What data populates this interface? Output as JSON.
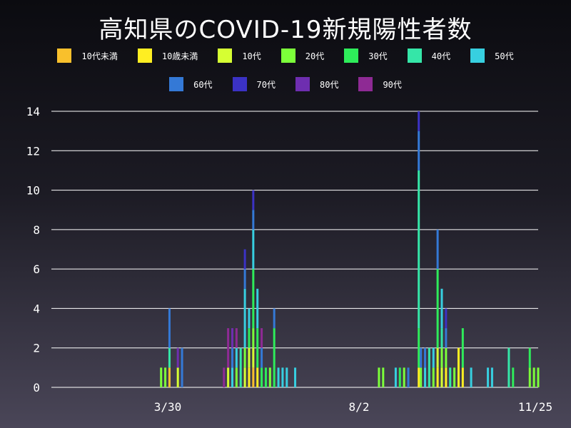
{
  "chart_data": {
    "type": "bar",
    "stacked": true,
    "title": "高知県のCOVID-19新規陽性者数",
    "x_tick_labels": [
      "3/30",
      "8/2",
      "11/25"
    ],
    "ylim": [
      0,
      14
    ],
    "yticks": [
      0,
      2,
      4,
      6,
      8,
      10,
      12,
      14
    ],
    "grid": true,
    "series": [
      {
        "name": "10代未満",
        "color": "#f9c02c"
      },
      {
        "name": "10歳未満",
        "color": "#ffee22"
      },
      {
        "name": "10代",
        "color": "#d6ff33"
      },
      {
        "name": "20代",
        "color": "#7cff3a"
      },
      {
        "name": "30代",
        "color": "#2eec5a"
      },
      {
        "name": "40代",
        "color": "#35e6a8"
      },
      {
        "name": "50代",
        "color": "#37cfe0"
      },
      {
        "name": "60代",
        "color": "#3479d6"
      },
      {
        "name": "70代",
        "color": "#3b32c4"
      },
      {
        "name": "80代",
        "color": "#6e2eb0"
      },
      {
        "name": "90代",
        "color": "#8e2a94"
      }
    ],
    "bars": [
      {
        "x": 0.1,
        "stack": [
          [
            3,
            1
          ]
        ]
      },
      {
        "x": 0.11,
        "stack": [
          [
            3,
            1
          ]
        ]
      },
      {
        "x": 0.12,
        "stack": [
          [
            0,
            1
          ],
          [
            5,
            1
          ],
          [
            7,
            2
          ]
        ]
      },
      {
        "x": 0.14,
        "stack": [
          [
            2,
            1
          ],
          [
            9,
            1
          ]
        ]
      },
      {
        "x": 0.15,
        "stack": [
          [
            7,
            2
          ]
        ]
      },
      {
        "x": 0.25,
        "stack": [
          [
            10,
            1
          ]
        ]
      },
      {
        "x": 0.26,
        "stack": [
          [
            2,
            1
          ],
          [
            10,
            2
          ]
        ]
      },
      {
        "x": 0.27,
        "stack": [
          [
            6,
            1
          ],
          [
            7,
            1
          ],
          [
            9,
            1
          ]
        ]
      },
      {
        "x": 0.28,
        "stack": [
          [
            3,
            1
          ],
          [
            6,
            1
          ],
          [
            10,
            1
          ]
        ]
      },
      {
        "x": 0.29,
        "stack": [
          [
            5,
            2
          ]
        ]
      },
      {
        "x": 0.3,
        "stack": [
          [
            2,
            1
          ],
          [
            3,
            1
          ],
          [
            6,
            3
          ],
          [
            7,
            1
          ],
          [
            8,
            1
          ]
        ]
      },
      {
        "x": 0.31,
        "stack": [
          [
            1,
            1
          ],
          [
            2,
            1
          ],
          [
            4,
            1
          ],
          [
            6,
            1
          ]
        ]
      },
      {
        "x": 0.32,
        "stack": [
          [
            0,
            1
          ],
          [
            2,
            1
          ],
          [
            3,
            1
          ],
          [
            4,
            3
          ],
          [
            6,
            2
          ],
          [
            7,
            1
          ],
          [
            8,
            1
          ]
        ]
      },
      {
        "x": 0.33,
        "stack": [
          [
            1,
            1
          ],
          [
            4,
            2
          ],
          [
            6,
            2
          ]
        ]
      },
      {
        "x": 0.34,
        "stack": [
          [
            4,
            1
          ],
          [
            7,
            1
          ],
          [
            10,
            1
          ]
        ]
      },
      {
        "x": 0.35,
        "stack": [
          [
            4,
            1
          ]
        ]
      },
      {
        "x": 0.36,
        "stack": [
          [
            3,
            1
          ]
        ]
      },
      {
        "x": 0.37,
        "stack": [
          [
            4,
            3
          ],
          [
            7,
            1
          ]
        ]
      },
      {
        "x": 0.38,
        "stack": [
          [
            6,
            1
          ]
        ]
      },
      {
        "x": 0.39,
        "stack": [
          [
            6,
            1
          ]
        ]
      },
      {
        "x": 0.4,
        "stack": [
          [
            6,
            1
          ]
        ]
      },
      {
        "x": 0.42,
        "stack": [
          [
            6,
            1
          ]
        ]
      },
      {
        "x": 0.62,
        "stack": [
          [
            3,
            1
          ]
        ]
      },
      {
        "x": 0.63,
        "stack": [
          [
            3,
            1
          ]
        ]
      },
      {
        "x": 0.66,
        "stack": [
          [
            6,
            1
          ]
        ]
      },
      {
        "x": 0.67,
        "stack": [
          [
            4,
            1
          ]
        ]
      },
      {
        "x": 0.68,
        "stack": [
          [
            3,
            1
          ]
        ]
      },
      {
        "x": 0.69,
        "stack": [
          [
            7,
            1
          ]
        ]
      },
      {
        "x": 0.715,
        "stack": [
          [
            1,
            1
          ],
          [
            4,
            2
          ],
          [
            5,
            8
          ],
          [
            7,
            2
          ],
          [
            8,
            1
          ]
        ]
      },
      {
        "x": 0.72,
        "stack": [
          [
            3,
            1
          ],
          [
            7,
            1
          ]
        ]
      },
      {
        "x": 0.73,
        "stack": [
          [
            6,
            1
          ],
          [
            7,
            1
          ]
        ]
      },
      {
        "x": 0.74,
        "stack": [
          [
            5,
            2
          ]
        ]
      },
      {
        "x": 0.75,
        "stack": [
          [
            3,
            1
          ],
          [
            6,
            1
          ]
        ]
      },
      {
        "x": 0.76,
        "stack": [
          [
            1,
            1
          ],
          [
            2,
            1
          ],
          [
            4,
            4
          ],
          [
            7,
            2
          ]
        ]
      },
      {
        "x": 0.77,
        "stack": [
          [
            2,
            1
          ],
          [
            3,
            1
          ],
          [
            5,
            1
          ],
          [
            6,
            2
          ]
        ]
      },
      {
        "x": 0.78,
        "stack": [
          [
            1,
            1
          ],
          [
            3,
            1
          ],
          [
            7,
            1
          ],
          [
            8,
            1
          ]
        ]
      },
      {
        "x": 0.79,
        "stack": [
          [
            5,
            1
          ]
        ]
      },
      {
        "x": 0.8,
        "stack": [
          [
            3,
            1
          ]
        ]
      },
      {
        "x": 0.81,
        "stack": [
          [
            1,
            2
          ]
        ]
      },
      {
        "x": 0.82,
        "stack": [
          [
            1,
            1
          ],
          [
            4,
            2
          ]
        ]
      },
      {
        "x": 0.84,
        "stack": [
          [
            6,
            1
          ]
        ]
      },
      {
        "x": 0.88,
        "stack": [
          [
            6,
            1
          ]
        ]
      },
      {
        "x": 0.89,
        "stack": [
          [
            6,
            1
          ]
        ]
      },
      {
        "x": 0.93,
        "stack": [
          [
            5,
            2
          ]
        ]
      },
      {
        "x": 0.94,
        "stack": [
          [
            4,
            1
          ]
        ]
      },
      {
        "x": 0.98,
        "stack": [
          [
            3,
            1
          ],
          [
            4,
            1
          ]
        ]
      },
      {
        "x": 0.99,
        "stack": [
          [
            3,
            1
          ]
        ]
      },
      {
        "x": 1.0,
        "stack": [
          [
            3,
            1
          ]
        ]
      }
    ]
  }
}
